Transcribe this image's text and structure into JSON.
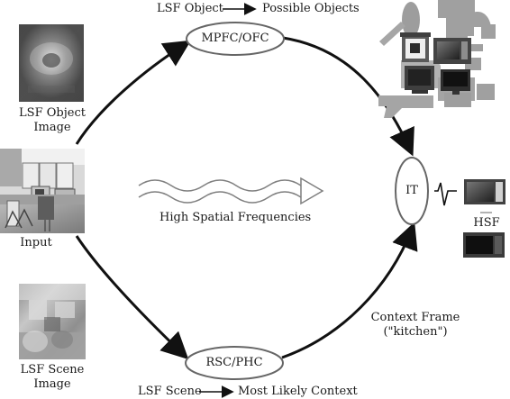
{
  "labels": {
    "top_left_flow": "LSF Object",
    "top_right_flow": "Possible Objects",
    "bottom_left_flow": "LSF Scene",
    "bottom_right_flow": "Most Likely Context",
    "lsf_object_image": "LSF Object Image",
    "lsf_scene_image": "LSF Scene Image",
    "input": "Input",
    "hsf_center": "High Spatial Frequencies",
    "context_frame": "Context Frame (\"kitchen\")",
    "hsf_right": "HSF"
  },
  "nodes": {
    "mpfc": "MPFC/OFC",
    "rsc": "RSC/PHC",
    "it": "IT"
  },
  "colors": {
    "line": "#111111",
    "node_fill": "#ffffff",
    "node_stroke": "#666666",
    "gray_dark": "#333333",
    "gray_mid": "#777777",
    "gray_light": "#bbbbbb",
    "silhouette": "#9a9a9a"
  }
}
